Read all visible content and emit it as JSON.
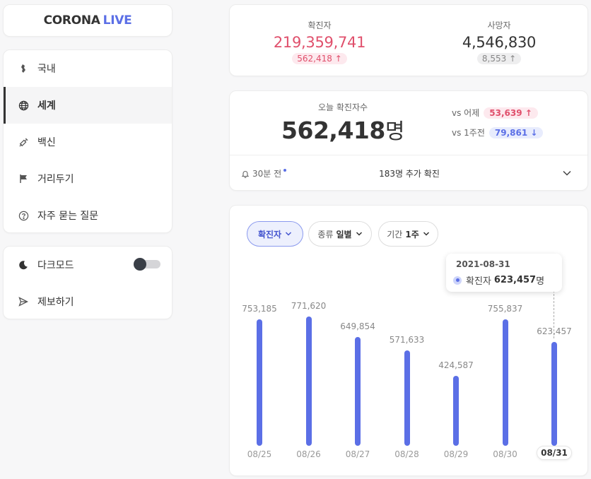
{
  "app": {
    "logo_main": "CORONA",
    "logo_accent": "LIVE"
  },
  "sidebar": {
    "items": [
      {
        "label": "국내",
        "icon": "korea-map-icon"
      },
      {
        "label": "세계",
        "icon": "globe-icon",
        "active": true
      },
      {
        "label": "백신",
        "icon": "syringe-icon"
      },
      {
        "label": "거리두기",
        "icon": "flag-icon"
      },
      {
        "label": "자주 묻는 질문",
        "icon": "question-circle-icon"
      }
    ],
    "dark_mode_label": "다크모드",
    "dark_mode_on": false,
    "report_label": "제보하기"
  },
  "totals": {
    "confirmed_label": "확진자",
    "confirmed": "219,359,741",
    "confirmed_delta": "562,418",
    "deaths_label": "사망자",
    "deaths": "4,546,830",
    "deaths_delta": "8,553"
  },
  "today": {
    "label": "오늘 확진자수",
    "value": "562,418",
    "unit": "명",
    "vs_yesterday_label": "vs 어제",
    "vs_yesterday": "53,639",
    "vs_week_label": "vs 1주전",
    "vs_week": "79,861",
    "time": "30분 전",
    "message": "183명 추가 확진"
  },
  "filters": {
    "metric": "확진자",
    "type_label": "종류",
    "type_value": "일별",
    "period_label": "기간",
    "period_value": "1주"
  },
  "tooltip": {
    "date": "2021-08-31",
    "series": "확진자",
    "value": "623,457",
    "unit": "명"
  },
  "colors": {
    "accent": "#5b6fe6",
    "up_red": "#e0506c",
    "neutral_gray": "#888888"
  },
  "chart_data": {
    "type": "bar",
    "categories": [
      "08/25",
      "08/26",
      "08/27",
      "08/28",
      "08/29",
      "08/30",
      "08/31"
    ],
    "values": [
      753185,
      771620,
      649854,
      571633,
      424587,
      755837,
      623457
    ],
    "value_labels": [
      "753,185",
      "771,620",
      "649,854",
      "571,633",
      "424,587",
      "755,837",
      "623,457"
    ],
    "selected": "08/31"
  }
}
